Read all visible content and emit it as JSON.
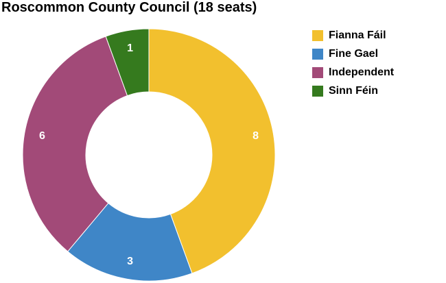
{
  "chart_data": {
    "type": "pie",
    "variant": "donut",
    "title": "Roscommon County Council (18 seats)",
    "categories": [
      "Fianna Fáil",
      "Fine Gael",
      "Independent",
      "Sinn Féin"
    ],
    "values": [
      8,
      3,
      6,
      1
    ],
    "colors": [
      "#F2C02E",
      "#3F86C7",
      "#A24A78",
      "#357A1E"
    ],
    "slice_labels": [
      "8",
      "3",
      "6",
      "1"
    ],
    "start_angle_deg": 0,
    "direction": "clockwise",
    "legend_placement": "right"
  }
}
